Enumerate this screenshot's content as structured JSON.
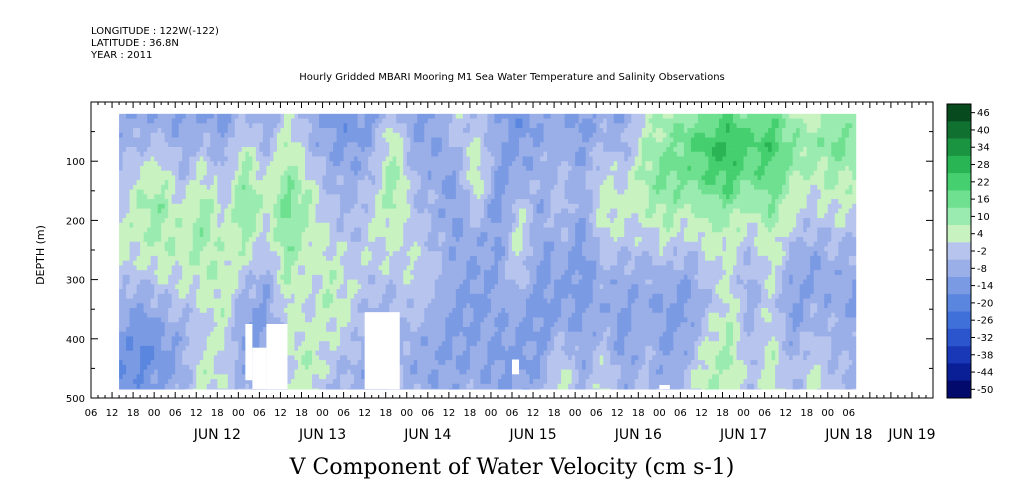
{
  "header": {
    "longitude": "LONGITUDE : 122W(-122)",
    "latitude": "LATITUDE : 36.8N",
    "year": "YEAR : 2011"
  },
  "chart_data": {
    "type": "heatmap",
    "title": "Hourly Gridded MBARI Mooring M1 Sea Water Temperature and Salinity Observations",
    "variable_title": "V Component of Water Velocity (cm s-1)",
    "ylabel": "DEPTH (m)",
    "ylim": [
      500,
      0
    ],
    "y_ticks": [
      100,
      200,
      300,
      400,
      500
    ],
    "y_tick_labels": [
      "100",
      "200",
      "300",
      "400",
      "500"
    ],
    "x_hour_labels": [
      "06",
      "12",
      "18",
      "00",
      "06",
      "12",
      "18",
      "00",
      "06",
      "12",
      "18",
      "00",
      "06",
      "12",
      "18",
      "00",
      "06",
      "12",
      "18",
      "00",
      "06",
      "12",
      "18",
      "00",
      "06",
      "12",
      "18",
      "00",
      "06",
      "12",
      "18",
      "00",
      "06",
      "12",
      "18",
      "00",
      "06"
    ],
    "x_day_labels": [
      "JUN 12",
      "JUN 13",
      "JUN 14",
      "JUN 15",
      "JUN 16",
      "JUN 17",
      "JUN 18",
      "JUN 19"
    ],
    "x_day_label_hour_offsets": [
      36,
      66,
      96,
      126,
      156,
      186,
      216,
      234
    ],
    "data_hour_range": [
      8,
      218
    ],
    "data_depth_range": [
      20,
      485
    ],
    "colorbar_levels": [
      -50,
      -44,
      -38,
      -32,
      -26,
      -20,
      -14,
      -8,
      -2,
      4,
      10,
      16,
      22,
      28,
      34,
      40,
      46
    ],
    "colorbar_labels": [
      "46",
      "40",
      "34",
      "28",
      "22",
      "16",
      "10",
      "4",
      "-2",
      "-8",
      "-14",
      "-20",
      "-26",
      "-32",
      "-38",
      "-44",
      "-50"
    ],
    "colorbar_colors": [
      "#020a6b",
      "#0a1f96",
      "#1838b8",
      "#2a55cc",
      "#3f6fd8",
      "#5a86df",
      "#7a9ae3",
      "#9aafe8",
      "#b7c4ee",
      "#c8f2c0",
      "#9aebb0",
      "#6fe090",
      "#45cf6e",
      "#2ab554",
      "#1a9440",
      "#0f7030",
      "#074a1e"
    ],
    "profiles": [
      {
        "hour": 8,
        "v": [
          -6,
          -4,
          -2,
          2,
          6,
          4,
          -4,
          -8,
          -12,
          -14
        ]
      },
      {
        "hour": 14,
        "v": [
          -8,
          -2,
          6,
          10,
          8,
          2,
          -6,
          -12,
          -16,
          -10
        ]
      },
      {
        "hour": 20,
        "v": [
          -6,
          0,
          8,
          14,
          12,
          6,
          -2,
          -8,
          -12,
          -8
        ]
      },
      {
        "hour": 26,
        "v": [
          -10,
          -6,
          -2,
          4,
          8,
          6,
          2,
          -4,
          -6,
          -4
        ]
      },
      {
        "hour": 32,
        "v": [
          -8,
          -2,
          6,
          12,
          14,
          10,
          4,
          2,
          6,
          8
        ]
      },
      {
        "hour": 38,
        "v": [
          -10,
          -6,
          -2,
          2,
          6,
          8,
          8,
          6,
          4,
          2
        ]
      },
      {
        "hour": 44,
        "v": [
          -4,
          6,
          14,
          16,
          12,
          4,
          -4,
          -10,
          -8,
          -4
        ]
      },
      {
        "hour": 50,
        "v": [
          -8,
          -4,
          2,
          6,
          2,
          -4,
          -8,
          -10,
          -6,
          -2
        ]
      },
      {
        "hour": 56,
        "v": [
          4,
          10,
          14,
          18,
          16,
          12,
          8,
          4,
          2,
          4
        ]
      },
      {
        "hour": 62,
        "v": [
          -6,
          -2,
          6,
          10,
          8,
          4,
          2,
          6,
          10,
          8
        ]
      },
      {
        "hour": 68,
        "v": [
          -10,
          -8,
          -4,
          0,
          4,
          8,
          10,
          6,
          2,
          -2
        ]
      },
      {
        "hour": 74,
        "v": [
          -12,
          -10,
          -6,
          -4,
          -2,
          2,
          4,
          2,
          -2,
          -4
        ]
      },
      {
        "hour": 80,
        "v": [
          -10,
          -6,
          -2,
          2,
          4,
          2,
          -2,
          -6,
          -8,
          -6
        ]
      },
      {
        "hour": 86,
        "v": [
          2,
          10,
          14,
          12,
          6,
          2,
          -2,
          -4,
          -2,
          0
        ]
      },
      {
        "hour": 92,
        "v": [
          -8,
          -6,
          -2,
          0,
          2,
          4,
          2,
          -2,
          -6,
          -4
        ]
      },
      {
        "hour": 98,
        "v": [
          -10,
          -8,
          -6,
          -4,
          -2,
          0,
          -2,
          -6,
          -8,
          -6
        ]
      },
      {
        "hour": 104,
        "v": [
          4,
          -2,
          -8,
          -10,
          -8,
          -6,
          -8,
          -10,
          -8,
          -6
        ]
      },
      {
        "hour": 110,
        "v": [
          -4,
          6,
          10,
          4,
          -4,
          -8,
          -10,
          -8,
          -6,
          -4
        ]
      },
      {
        "hour": 116,
        "v": [
          -6,
          -8,
          -10,
          -12,
          -10,
          -8,
          -6,
          -8,
          -10,
          -8
        ]
      },
      {
        "hour": 122,
        "v": [
          -12,
          -10,
          -6,
          2,
          8,
          4,
          -4,
          -8,
          -10,
          -8
        ]
      },
      {
        "hour": 128,
        "v": [
          -8,
          -6,
          -4,
          -6,
          -8,
          -10,
          -12,
          -10,
          -8,
          -6
        ]
      },
      {
        "hour": 134,
        "v": [
          -6,
          -4,
          -2,
          2,
          -2,
          -6,
          -8,
          -6,
          4,
          8
        ]
      },
      {
        "hour": 140,
        "v": [
          -10,
          -8,
          -6,
          -8,
          -10,
          -12,
          -10,
          -8,
          -6,
          -4
        ]
      },
      {
        "hour": 146,
        "v": [
          -6,
          -2,
          4,
          8,
          4,
          -2,
          -6,
          -4,
          2,
          6
        ]
      },
      {
        "hour": 152,
        "v": [
          -8,
          -4,
          2,
          6,
          2,
          -4,
          -8,
          -10,
          -8,
          -6
        ]
      },
      {
        "hour": 158,
        "v": [
          6,
          10,
          12,
          8,
          2,
          -4,
          -6,
          -4,
          -2,
          0
        ]
      },
      {
        "hour": 164,
        "v": [
          10,
          14,
          18,
          14,
          6,
          -2,
          -8,
          -10,
          -8,
          -6
        ]
      },
      {
        "hour": 170,
        "v": [
          14,
          20,
          18,
          10,
          2,
          -6,
          -10,
          -8,
          -4,
          2
        ]
      },
      {
        "hour": 176,
        "v": [
          18,
          26,
          22,
          14,
          8,
          2,
          -2,
          2,
          8,
          10
        ]
      },
      {
        "hour": 182,
        "v": [
          22,
          30,
          26,
          16,
          8,
          4,
          6,
          10,
          12,
          8
        ]
      },
      {
        "hour": 188,
        "v": [
          16,
          22,
          18,
          10,
          2,
          -4,
          -6,
          -4,
          -2,
          0
        ]
      },
      {
        "hour": 194,
        "v": [
          20,
          26,
          22,
          16,
          10,
          6,
          4,
          6,
          8,
          6
        ]
      },
      {
        "hour": 200,
        "v": [
          10,
          16,
          12,
          6,
          0,
          -6,
          -10,
          -8,
          -4,
          -2
        ]
      },
      {
        "hour": 206,
        "v": [
          6,
          12,
          8,
          2,
          -4,
          -8,
          -6,
          -2,
          4,
          6
        ]
      },
      {
        "hour": 212,
        "v": [
          14,
          18,
          12,
          6,
          0,
          -4,
          -6,
          -4,
          -2,
          0
        ]
      },
      {
        "hour": 218,
        "v": [
          10,
          14,
          10,
          4,
          -2,
          -6,
          -8,
          -6,
          -4,
          -2
        ]
      }
    ],
    "missing_blocks": [
      {
        "hours": [
          44,
          46
        ],
        "depths": [
          375,
          470
        ]
      },
      {
        "hours": [
          46,
          50
        ],
        "depths": [
          415,
          485
        ]
      },
      {
        "hours": [
          50,
          56
        ],
        "depths": [
          375,
          485
        ]
      },
      {
        "hours": [
          78,
          88
        ],
        "depths": [
          355,
          485
        ]
      },
      {
        "hours": [
          120,
          122
        ],
        "depths": [
          435,
          460
        ]
      },
      {
        "hours": [
          162,
          165
        ],
        "depths": [
          478,
          485
        ]
      }
    ]
  }
}
